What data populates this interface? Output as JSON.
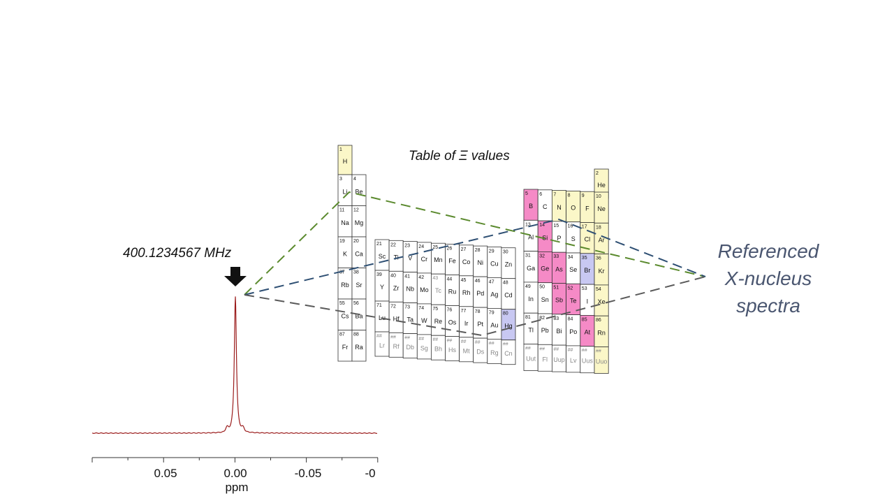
{
  "title": "Table of Ξ values",
  "frequency_label": "400.1234567 MHz",
  "right_label_lines": [
    "Referenced",
    "X-nucleus",
    "spectra"
  ],
  "colors": {
    "spectrum": "#9b1c1c",
    "pink": "#f58ac6",
    "yellow": "#fbf7c8",
    "lavender": "#c8c8f2",
    "green_dash": "#5b8a2e",
    "blue_dash": "#2e4f73",
    "gray_dash": "#5a5a5a",
    "arrow": "#111111"
  },
  "axis": {
    "ticks": [
      "0.05",
      "0.00",
      "-0.05",
      "-0"
    ],
    "label": "ppm"
  },
  "periodic_table": {
    "left_block": [
      {
        "n": "1",
        "s": "H",
        "c": "yellow"
      },
      {
        "n": "3",
        "s": "Li",
        "c": ""
      },
      {
        "n": "4",
        "s": "Be",
        "c": ""
      },
      {
        "n": "11",
        "s": "Na",
        "c": ""
      },
      {
        "n": "12",
        "s": "Mg",
        "c": ""
      },
      {
        "n": "19",
        "s": "K",
        "c": ""
      },
      {
        "n": "20",
        "s": "Ca",
        "c": ""
      },
      {
        "n": "37",
        "s": "Rb",
        "c": ""
      },
      {
        "n": "38",
        "s": "Sr",
        "c": ""
      },
      {
        "n": "55",
        "s": "Cs",
        "c": ""
      },
      {
        "n": "56",
        "s": "Ba",
        "c": ""
      },
      {
        "n": "87",
        "s": "Fr",
        "c": ""
      },
      {
        "n": "88",
        "s": "Ra",
        "c": ""
      }
    ],
    "transition_rows": [
      [
        {
          "n": "21",
          "s": "Sc"
        },
        {
          "n": "22",
          "s": "Ti"
        },
        {
          "n": "23",
          "s": "V"
        },
        {
          "n": "24",
          "s": "Cr"
        },
        {
          "n": "25",
          "s": "Mn"
        },
        {
          "n": "26",
          "s": "Fe"
        },
        {
          "n": "27",
          "s": "Co"
        },
        {
          "n": "28",
          "s": "Ni"
        },
        {
          "n": "29",
          "s": "Cu"
        },
        {
          "n": "30",
          "s": "Zn"
        }
      ],
      [
        {
          "n": "39",
          "s": "Y"
        },
        {
          "n": "40",
          "s": "Zr"
        },
        {
          "n": "41",
          "s": "Nb"
        },
        {
          "n": "42",
          "s": "Mo"
        },
        {
          "n": "43",
          "s": "Tc",
          "g": true
        },
        {
          "n": "44",
          "s": "Ru"
        },
        {
          "n": "45",
          "s": "Rh"
        },
        {
          "n": "46",
          "s": "Pd"
        },
        {
          "n": "47",
          "s": "Ag"
        },
        {
          "n": "48",
          "s": "Cd"
        }
      ],
      [
        {
          "n": "71",
          "s": "Lu"
        },
        {
          "n": "72",
          "s": "Hf"
        },
        {
          "n": "73",
          "s": "Ta"
        },
        {
          "n": "74",
          "s": "W"
        },
        {
          "n": "75",
          "s": "Re"
        },
        {
          "n": "76",
          "s": "Os"
        },
        {
          "n": "77",
          "s": "Ir"
        },
        {
          "n": "78",
          "s": "Pt"
        },
        {
          "n": "79",
          "s": "Au"
        },
        {
          "n": "80",
          "s": "Hg",
          "c": "lavender"
        }
      ],
      [
        {
          "n": "##",
          "s": "Lr",
          "g": true
        },
        {
          "n": "##",
          "s": "Rf",
          "g": true
        },
        {
          "n": "##",
          "s": "Db",
          "g": true
        },
        {
          "n": "##",
          "s": "Sg",
          "g": true
        },
        {
          "n": "##",
          "s": "Bh",
          "g": true
        },
        {
          "n": "##",
          "s": "Hs",
          "g": true
        },
        {
          "n": "##",
          "s": "Mt",
          "g": true
        },
        {
          "n": "##",
          "s": "Ds",
          "g": true
        },
        {
          "n": "##",
          "s": "Rg",
          "g": true
        },
        {
          "n": "##",
          "s": "Cn",
          "g": true
        }
      ]
    ],
    "p_block_rows": [
      [
        null,
        null,
        null,
        null,
        null,
        {
          "n": "2",
          "s": "He",
          "c": "yellow"
        }
      ],
      [
        {
          "n": "5",
          "s": "B",
          "c": "pink"
        },
        {
          "n": "6",
          "s": "C"
        },
        {
          "n": "7",
          "s": "N",
          "c": "yellow"
        },
        {
          "n": "8",
          "s": "O",
          "c": "yellow"
        },
        {
          "n": "9",
          "s": "F",
          "c": "yellow"
        },
        {
          "n": "10",
          "s": "Ne",
          "c": "yellow"
        }
      ],
      [
        {
          "n": "13",
          "s": "Al"
        },
        {
          "n": "14",
          "s": "Si",
          "c": "pink"
        },
        {
          "n": "15",
          "s": "P"
        },
        {
          "n": "16",
          "s": "S"
        },
        {
          "n": "17",
          "s": "Cl",
          "c": "yellow"
        },
        {
          "n": "18",
          "s": "Ar",
          "c": "yellow"
        }
      ],
      [
        {
          "n": "31",
          "s": "Ga"
        },
        {
          "n": "32",
          "s": "Ge",
          "c": "pink"
        },
        {
          "n": "33",
          "s": "As",
          "c": "pink"
        },
        {
          "n": "34",
          "s": "Se"
        },
        {
          "n": "35",
          "s": "Br",
          "c": "lavender"
        },
        {
          "n": "36",
          "s": "Kr",
          "c": "yellow"
        }
      ],
      [
        {
          "n": "49",
          "s": "In"
        },
        {
          "n": "50",
          "s": "Sn"
        },
        {
          "n": "51",
          "s": "Sb",
          "c": "pink"
        },
        {
          "n": "52",
          "s": "Te",
          "c": "pink"
        },
        {
          "n": "53",
          "s": "I"
        },
        {
          "n": "54",
          "s": "Xe",
          "c": "yellow"
        }
      ],
      [
        {
          "n": "81",
          "s": "Tl"
        },
        {
          "n": "82",
          "s": "Pb"
        },
        {
          "n": "83",
          "s": "Bi"
        },
        {
          "n": "84",
          "s": "Po"
        },
        {
          "n": "85",
          "s": "At",
          "c": "pink"
        },
        {
          "n": "86",
          "s": "Rn",
          "c": "yellow"
        }
      ],
      [
        {
          "n": "##",
          "s": "Uut",
          "g": true
        },
        {
          "n": "##",
          "s": "Fl",
          "g": true
        },
        {
          "n": "##",
          "s": "Uup",
          "g": true
        },
        {
          "n": "##",
          "s": "Lv",
          "g": true
        },
        {
          "n": "##",
          "s": "Uus",
          "g": true
        },
        {
          "n": "##",
          "s": "Uuo",
          "g": true,
          "c": "yellow"
        }
      ]
    ]
  }
}
